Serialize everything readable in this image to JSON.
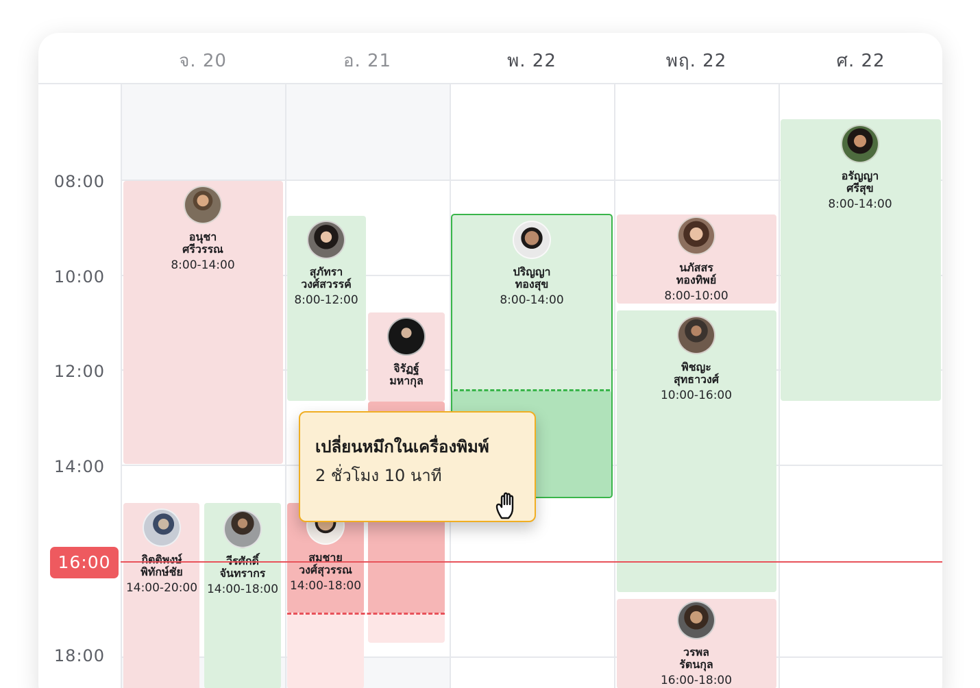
{
  "days": [
    {
      "label": "จ. 20"
    },
    {
      "label": "อ. 21"
    },
    {
      "label": "พ. 22"
    },
    {
      "label": "พฤ. 22"
    },
    {
      "label": "ศ. 22"
    }
  ],
  "times": [
    "08:00",
    "10:00",
    "12:00",
    "14:00",
    "18:00"
  ],
  "now": {
    "label": "16:00"
  },
  "shifts": [
    {
      "name": "อนุชา\nศรีวรรณ",
      "time": "8:00-14:00",
      "status": "red"
    },
    {
      "name": "สุภัทรา\nวงศ์สวรรค์",
      "time": "8:00-12:00",
      "status": "green"
    },
    {
      "name": "จิรัฏฐ์\nมหากุล",
      "time": "",
      "status": "red"
    },
    {
      "name": "ปริญญา\nทองสุข",
      "time": "8:00-14:00",
      "status": "selected"
    },
    {
      "name": "นภัสสร\nทองทิพย์",
      "time": "8:00-10:00",
      "status": "red"
    },
    {
      "name": "พิชญะ\nสุทธาวงศ์",
      "time": "10:00-16:00",
      "status": "green"
    },
    {
      "name": "อรัญญา\nศรีสุข",
      "time": "8:00-14:00",
      "status": "green"
    },
    {
      "name": "กิตติพงษ์\nพิทักษ์ชัย",
      "time": "14:00-20:00",
      "status": "red"
    },
    {
      "name": "วีรศักดิ์\nจันทรากร",
      "time": "14:00-18:00",
      "status": "green"
    },
    {
      "name": "สมชาย\nวงศ์สุวรรณ",
      "time": "14:00-18:00",
      "status": "red"
    },
    {
      "name": "วรพล\nรัตนกุล",
      "time": "16:00-18:00",
      "status": "red"
    }
  ],
  "tooltip": {
    "title": "เปลี่ยนหมึกในเครื่องพิมพ์",
    "duration": "2 ชั่วโมง 10 นาที",
    "cursor_icon": "grab-hand-icon"
  },
  "colors": {
    "red_block": "#f8dedf",
    "green_block": "#dcf0de",
    "selected_border": "#39b54a",
    "now_line": "#e8525a",
    "tooltip_bg": "#fcefd3",
    "tooltip_border": "#f0ae22"
  }
}
